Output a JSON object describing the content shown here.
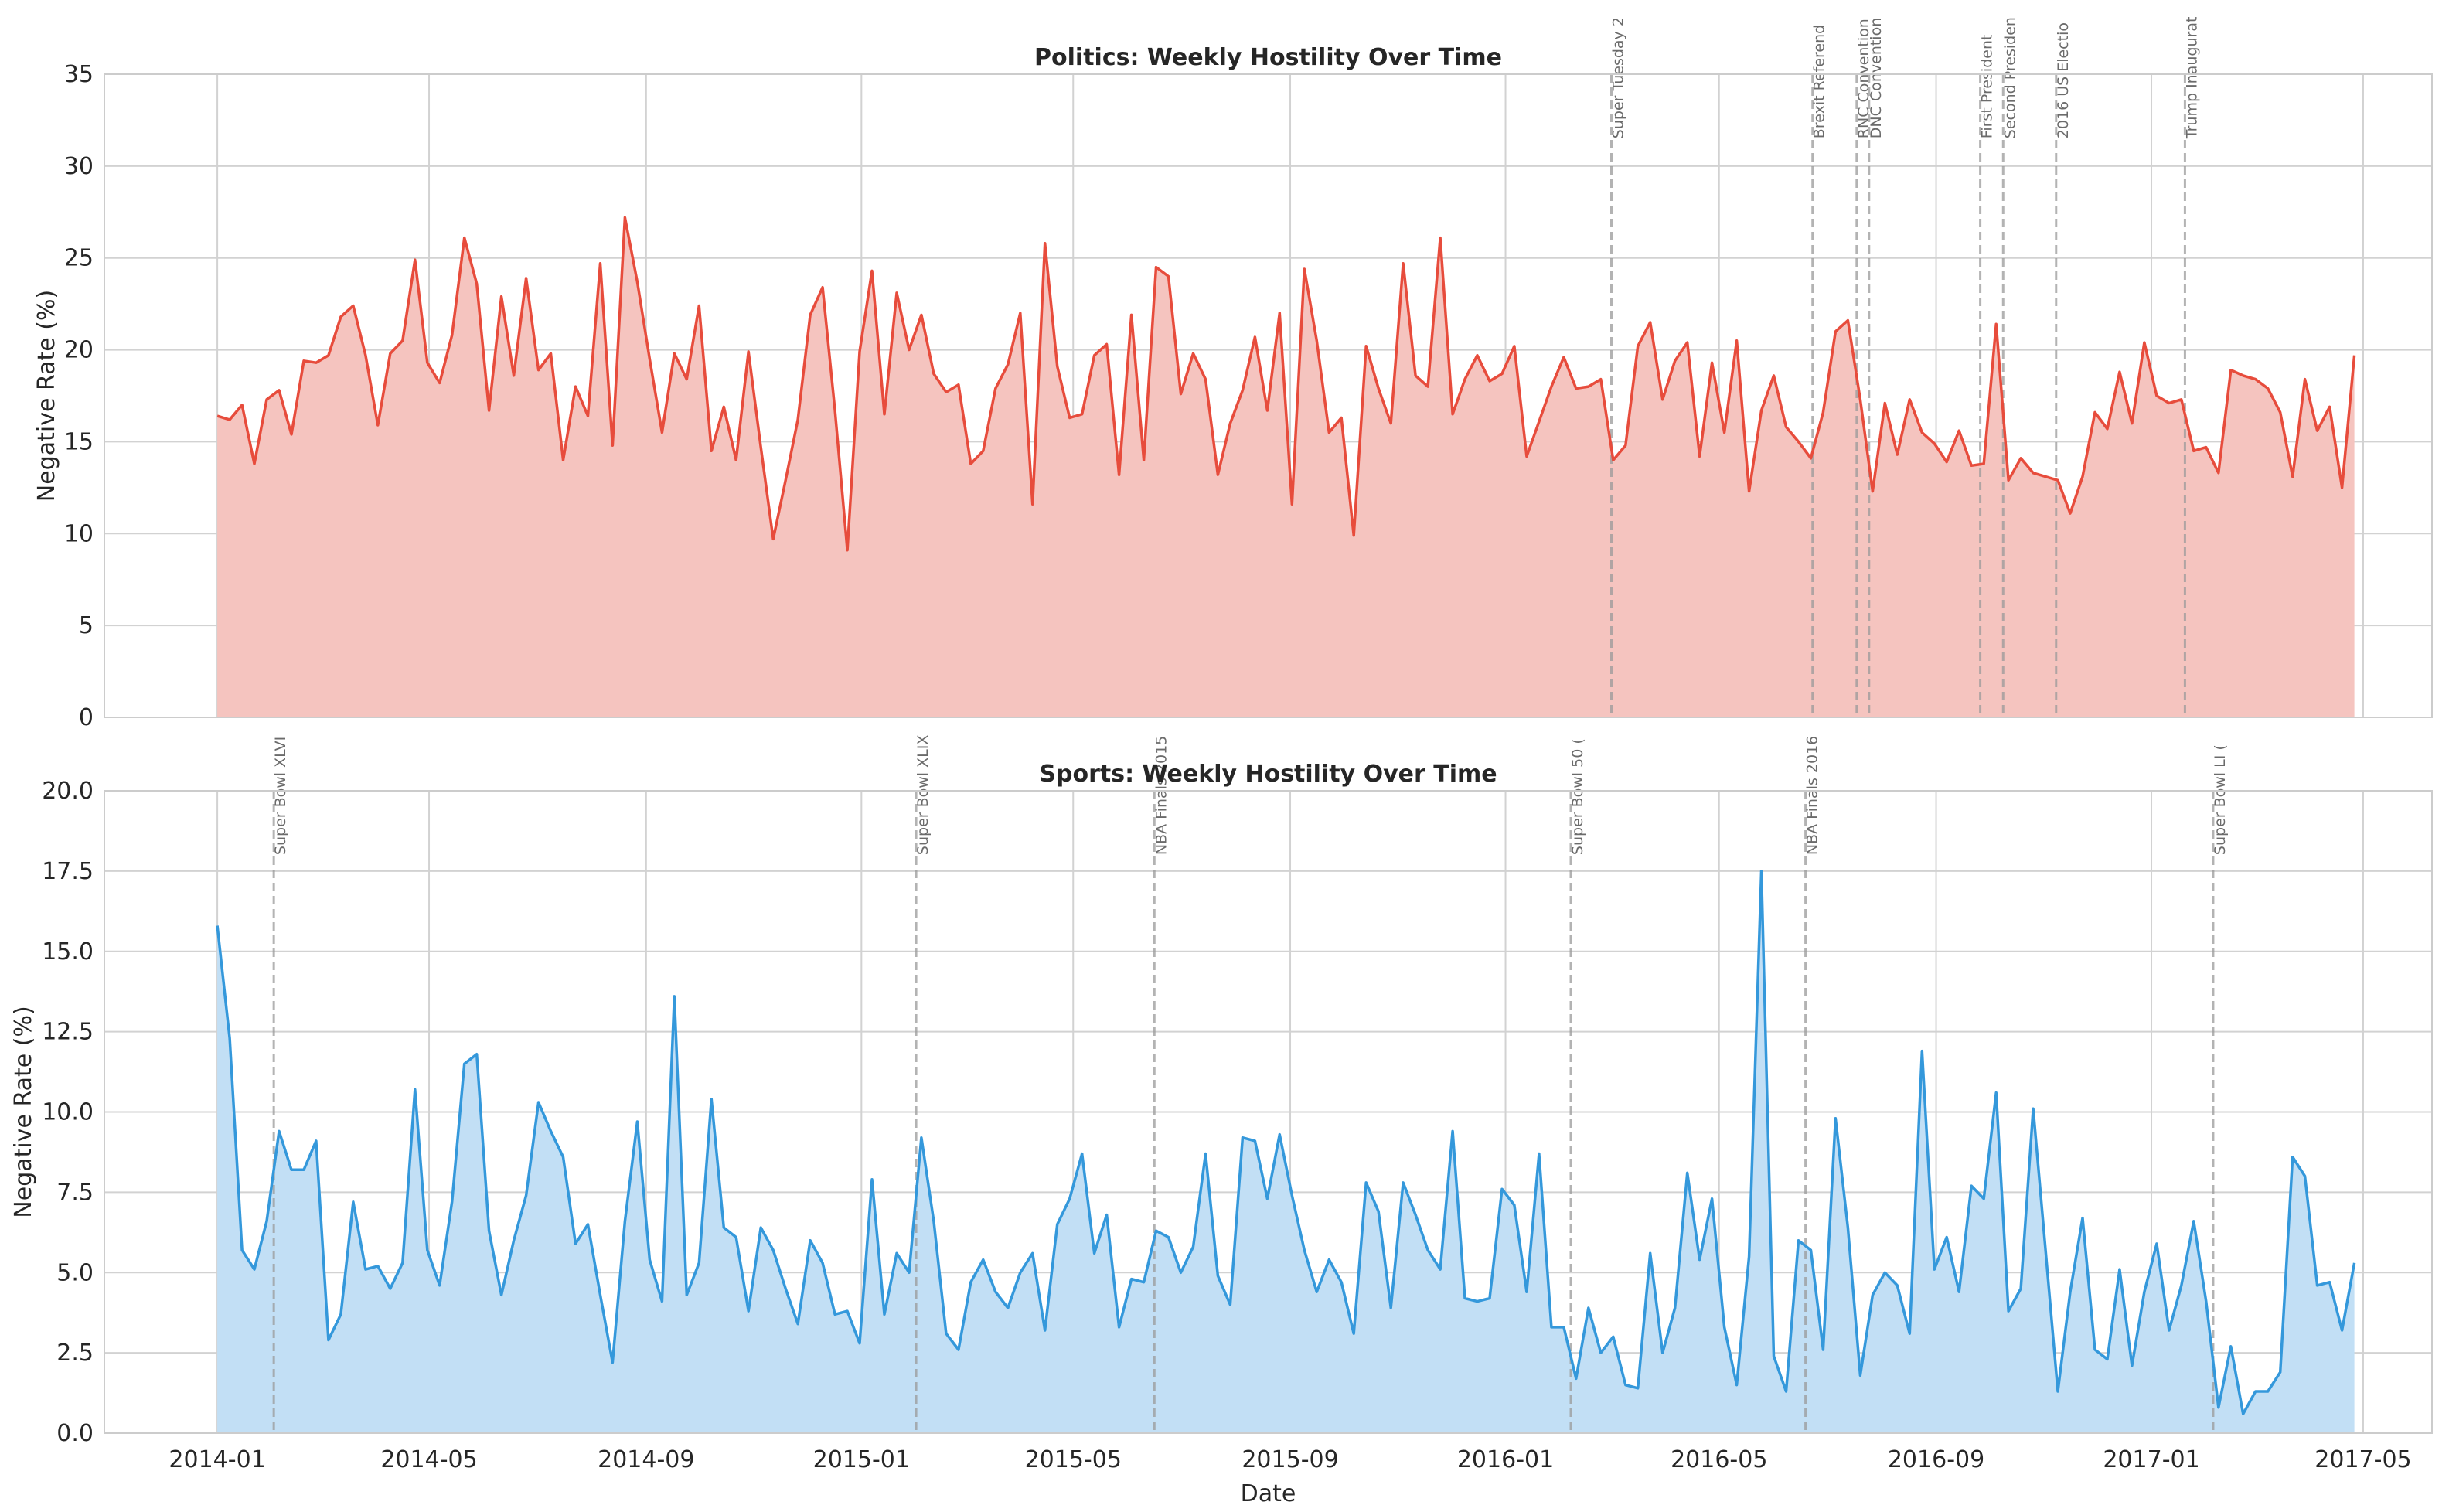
{
  "chart_data": [
    {
      "type": "area",
      "title": "Politics: Weekly Hostility Over Time",
      "xlabel": "",
      "ylabel": "Negative Rate (%)",
      "ylim": [
        0,
        35
      ],
      "yticks": [
        "0",
        "5",
        "10",
        "15",
        "20",
        "25",
        "30",
        "35"
      ],
      "xticks": [
        "2014-01",
        "2014-05",
        "2014-09",
        "2015-01",
        "2015-05",
        "2015-09",
        "2016-01",
        "2016-05",
        "2016-09",
        "2017-01",
        "2017-05"
      ],
      "grid": true,
      "line_color": "#e74c3c",
      "fill_color": "#f5c4bf",
      "series": [
        {
          "start": "2014-01-01",
          "interval_days": 7,
          "values": [
            16.4,
            16.2,
            17.0,
            13.8,
            17.3,
            17.8,
            15.4,
            19.4,
            19.3,
            19.7,
            21.8,
            22.4,
            19.7,
            15.9,
            19.8,
            20.5,
            24.9,
            19.3,
            18.2,
            20.8,
            26.1,
            23.6,
            16.7,
            22.9,
            18.6,
            23.9,
            18.9,
            19.8,
            14.0,
            18.0,
            16.4,
            24.7,
            14.8,
            27.2,
            23.7,
            19.5,
            15.5,
            19.8,
            18.4,
            22.4,
            14.5,
            16.9,
            14.0,
            19.9,
            14.7,
            9.7,
            12.9,
            16.2,
            21.9,
            23.4,
            16.7,
            9.1,
            19.9,
            24.3,
            16.5,
            23.1,
            20.0,
            21.9,
            18.7,
            17.7,
            18.1,
            13.8,
            14.5,
            17.9,
            19.2,
            22.0,
            11.6,
            25.8,
            19.1,
            16.3,
            16.5,
            19.7,
            20.3,
            13.2,
            21.9,
            14.0,
            24.5,
            24.0,
            17.6,
            19.8,
            18.4,
            13.2,
            16.0,
            17.8,
            20.7,
            16.7,
            22.0,
            11.6,
            24.4,
            20.5,
            15.5,
            16.3,
            9.9,
            20.2,
            17.9,
            16.0,
            24.7,
            18.6,
            18.0,
            26.1,
            16.5,
            18.4,
            19.7,
            18.3,
            18.7,
            20.2,
            14.2,
            16.1,
            18.0,
            19.6,
            17.9,
            18.0,
            18.4,
            14.0,
            14.8,
            20.2,
            21.5,
            17.3,
            19.4,
            20.4,
            14.2,
            19.3,
            15.5,
            20.5,
            12.3,
            16.7,
            18.6,
            15.8,
            15.0,
            14.1,
            16.6,
            21.0,
            21.6,
            17.3,
            12.3,
            17.1,
            14.3,
            17.3,
            15.5,
            14.9,
            13.9,
            15.6,
            13.7,
            13.8,
            21.4,
            12.9,
            14.1,
            13.3,
            13.1,
            12.9,
            11.1,
            13.1,
            16.6,
            15.7,
            18.8,
            16.0,
            20.4,
            17.5,
            17.1,
            17.3,
            14.5,
            14.7,
            13.3,
            18.9,
            18.6,
            18.4,
            17.9,
            16.6,
            13.1,
            18.4,
            15.6,
            16.9,
            12.5,
            19.7
          ]
        }
      ],
      "events": [
        {
          "label": "Super Tuesday 2",
          "x": "2016-03-01"
        },
        {
          "label": "Brexit Referend",
          "x": "2016-06-23"
        },
        {
          "label": "RNC Convention",
          "x": "2016-07-18"
        },
        {
          "label": "DNC Convention",
          "x": "2016-07-25"
        },
        {
          "label": "First President",
          "x": "2016-09-26"
        },
        {
          "label": "Second Presiden",
          "x": "2016-10-09"
        },
        {
          "label": "2016 US Electio",
          "x": "2016-11-08"
        },
        {
          "label": "Trump Inaugurat",
          "x": "2017-01-20"
        }
      ]
    },
    {
      "type": "area",
      "title": "Sports: Weekly Hostility Over Time",
      "xlabel": "Date",
      "ylabel": "Negative Rate (%)",
      "ylim": [
        0,
        20
      ],
      "yticks": [
        "0.0",
        "2.5",
        "5.0",
        "7.5",
        "10.0",
        "12.5",
        "15.0",
        "17.5",
        "20.0"
      ],
      "xticks": [
        "2014-01",
        "2014-05",
        "2014-09",
        "2015-01",
        "2015-05",
        "2015-09",
        "2016-01",
        "2016-05",
        "2016-09",
        "2017-01",
        "2017-05"
      ],
      "grid": true,
      "line_color": "#3498db",
      "fill_color": "#c2dff5",
      "series": [
        {
          "start": "2014-01-01",
          "interval_days": 7,
          "values": [
            15.8,
            12.3,
            5.7,
            5.1,
            6.6,
            9.4,
            8.2,
            8.2,
            9.1,
            2.9,
            3.7,
            7.2,
            5.1,
            5.2,
            4.5,
            5.3,
            10.7,
            5.7,
            4.6,
            7.2,
            11.5,
            11.8,
            6.3,
            4.3,
            6.0,
            7.4,
            10.3,
            9.4,
            8.6,
            5.9,
            6.5,
            4.3,
            2.2,
            6.6,
            9.7,
            5.4,
            4.1,
            13.6,
            4.3,
            5.3,
            10.4,
            6.4,
            6.1,
            3.8,
            6.4,
            5.7,
            4.5,
            3.4,
            6.0,
            5.3,
            3.7,
            3.8,
            2.8,
            7.9,
            3.7,
            5.6,
            5.0,
            9.2,
            6.6,
            3.1,
            2.6,
            4.7,
            5.4,
            4.4,
            3.9,
            5.0,
            5.6,
            3.2,
            6.5,
            7.3,
            8.7,
            5.6,
            6.8,
            3.3,
            4.8,
            4.7,
            6.3,
            6.1,
            5.0,
            5.8,
            8.7,
            4.9,
            4.0,
            9.2,
            9.1,
            7.3,
            9.3,
            7.4,
            5.7,
            4.4,
            5.4,
            4.7,
            3.1,
            7.8,
            6.9,
            3.9,
            7.8,
            6.8,
            5.7,
            5.1,
            9.4,
            4.2,
            4.1,
            4.2,
            7.6,
            7.1,
            4.4,
            8.7,
            3.3,
            3.3,
            1.7,
            3.9,
            2.5,
            3.0,
            1.5,
            1.4,
            5.6,
            2.5,
            3.9,
            8.1,
            5.4,
            7.3,
            3.3,
            1.5,
            5.5,
            17.5,
            2.4,
            1.3,
            6.0,
            5.7,
            2.6,
            9.8,
            6.4,
            1.8,
            4.3,
            5.0,
            4.6,
            3.1,
            11.9,
            5.1,
            6.1,
            4.4,
            7.7,
            7.3,
            10.6,
            3.8,
            4.5,
            10.1,
            5.7,
            1.3,
            4.4,
            6.7,
            2.6,
            2.3,
            5.1,
            2.1,
            4.4,
            5.9,
            3.2,
            4.6,
            6.6,
            4.1,
            0.8,
            2.7,
            0.6,
            1.3,
            1.3,
            1.9,
            8.6,
            8.0,
            4.6,
            4.7,
            3.2,
            5.3
          ]
        }
      ],
      "events": [
        {
          "label": "Super Bowl XLVI",
          "x": "2014-02-02"
        },
        {
          "label": "Super Bowl XLIX",
          "x": "2015-02-01"
        },
        {
          "label": "NBA Finals 2015",
          "x": "2015-06-16"
        },
        {
          "label": "Super Bowl 50 (",
          "x": "2016-02-07"
        },
        {
          "label": "NBA Finals 2016",
          "x": "2016-06-19"
        },
        {
          "label": "Super Bowl LI (",
          "x": "2017-02-05"
        }
      ]
    }
  ]
}
